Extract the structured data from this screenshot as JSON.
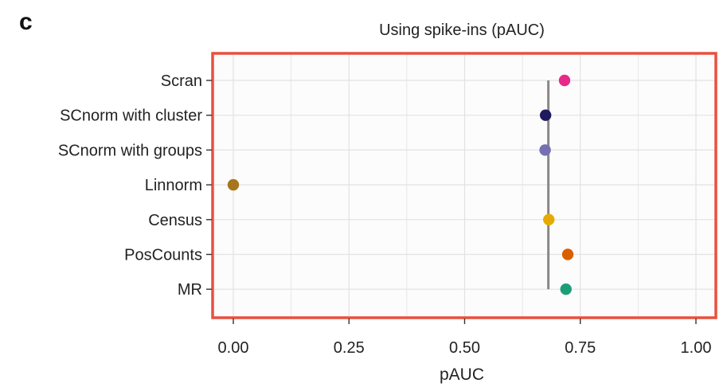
{
  "panel_label": "c",
  "chart_data": {
    "type": "scatter",
    "title": "Using spike-ins (pAUC)",
    "xlabel": "pAUC",
    "ylabel": "",
    "xlim": [
      0,
      1
    ],
    "x_ticks": [
      0.0,
      0.25,
      0.5,
      0.75,
      1.0
    ],
    "x_tick_labels": [
      "0.00",
      "0.25",
      "0.50",
      "0.75",
      "1.00"
    ],
    "grid": true,
    "categories": [
      "Scran",
      "SCnorm with cluster",
      "SCnorm with groups",
      "Linnorm",
      "Census",
      "PosCounts",
      "MR"
    ],
    "values": [
      0.716,
      0.675,
      0.674,
      0.0,
      0.682,
      0.723,
      0.719
    ],
    "colors": [
      "#e7298a",
      "#1f1a5e",
      "#7570b3",
      "#a6761d",
      "#e6ab02",
      "#d95f02",
      "#1b9e77"
    ],
    "reference_line": {
      "x": 0.681,
      "color": "#888888"
    },
    "panel_border_color": "#e8503f",
    "panel_background": "#fdfcfc",
    "grid_color": "#e2e2e2"
  }
}
